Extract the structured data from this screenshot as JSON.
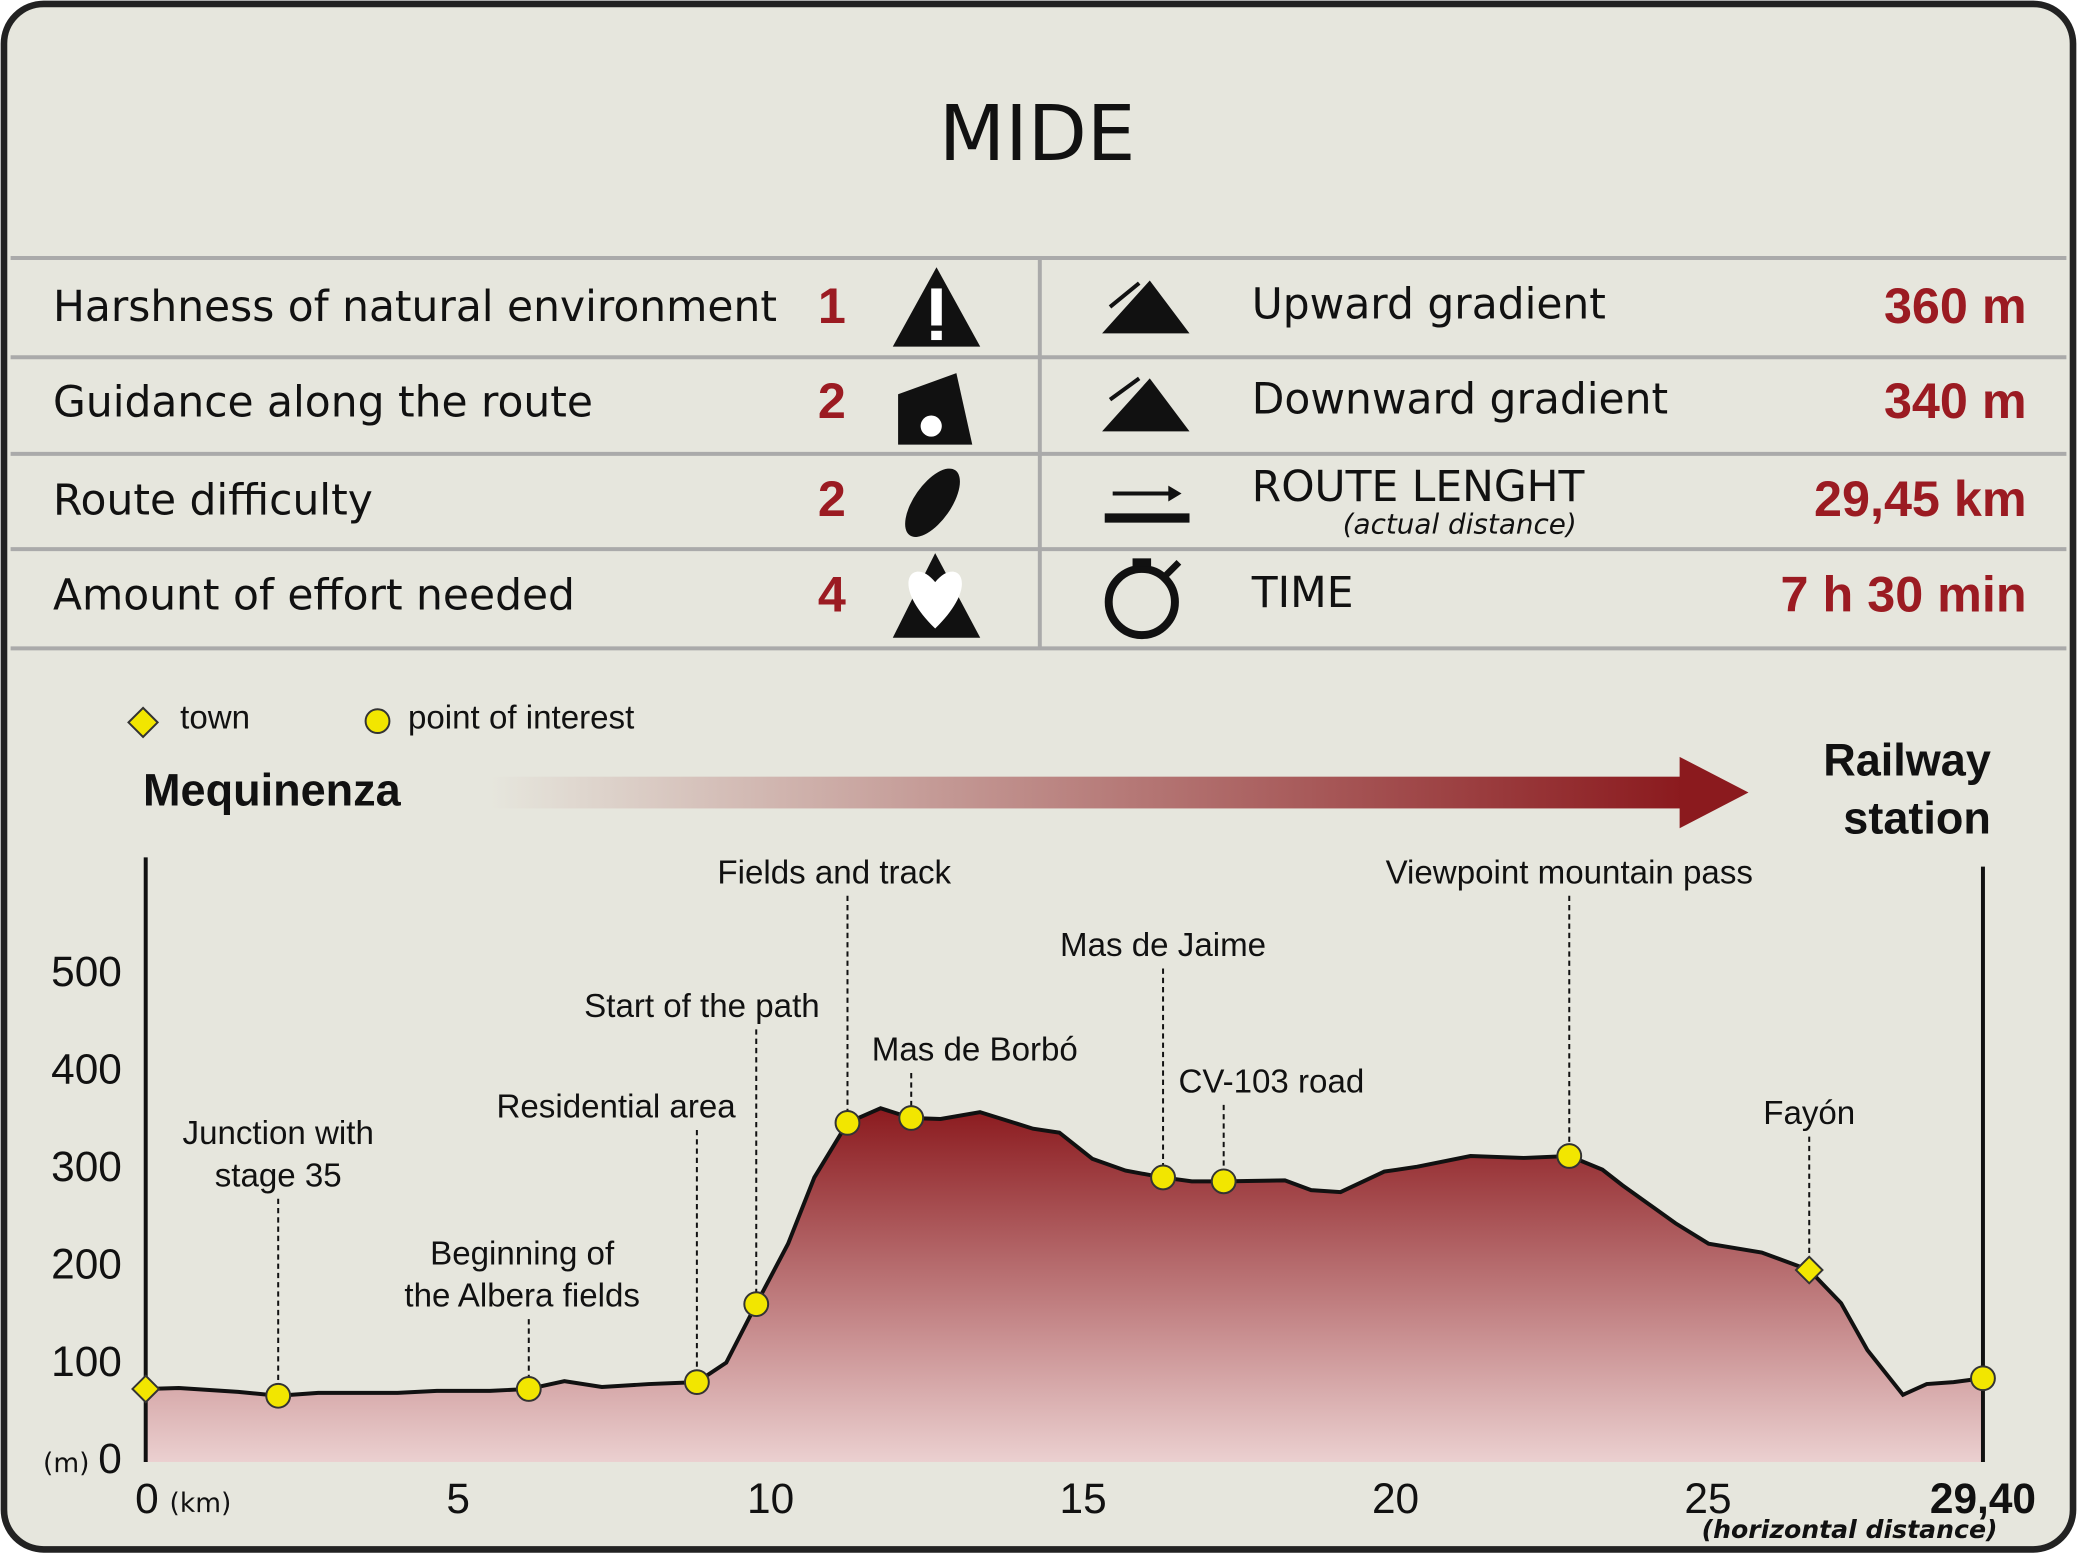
{
  "title": "MIDE",
  "mide": {
    "left": [
      {
        "label": "Harshness of natural environment",
        "value": 1
      },
      {
        "label": "Guidance along the route",
        "value": 2
      },
      {
        "label": "Route difficulty",
        "value": 2
      },
      {
        "label": "Amount of effort needed",
        "value": 4
      }
    ],
    "right": [
      {
        "label": "Upward gradient",
        "value": "360 m"
      },
      {
        "label": "Downward gradient",
        "value": "340 m"
      },
      {
        "label": "ROUTE LENGHT",
        "note": "(actual distance)",
        "value": "29,45 km"
      },
      {
        "label": "TIME",
        "value": "7 h 30 min"
      }
    ]
  },
  "legend": {
    "town": "town",
    "poi": "point of interest"
  },
  "chart_data": {
    "type": "area",
    "start_label": "Mequinenza",
    "end_label_lines": [
      "Railway",
      "station"
    ],
    "x_unit": "(km)",
    "y_unit": "(m)",
    "x_note": "(horizontal distance)",
    "xlim": [
      0,
      29.4
    ],
    "ylim": [
      0,
      600
    ],
    "xticks": [
      0,
      5,
      10,
      15,
      20,
      25,
      {
        "value": 29.4,
        "label": "29,40"
      }
    ],
    "yticks": [
      0,
      100,
      200,
      300,
      400,
      500
    ],
    "color": "#8b1a1e",
    "x": [
      0,
      0.53,
      1.48,
      2.12,
      2.76,
      4.03,
      4.66,
      5.51,
      6.13,
      6.7,
      7.3,
      8.05,
      8.82,
      9.29,
      9.77,
      10.28,
      10.7,
      11.23,
      11.76,
      12.25,
      12.72,
      13.35,
      14.2,
      14.62,
      15.15,
      15.68,
      16.28,
      16.74,
      17.25,
      18.23,
      18.65,
      19.12,
      19.82,
      20.35,
      21.2,
      22.05,
      22.78,
      23.31,
      23.63,
      24.48,
      25.01,
      25.86,
      26.62,
      27.13,
      27.55,
      28.12,
      28.5,
      28.93,
      29.4
    ],
    "values": [
      75,
      76,
      72,
      68,
      71,
      71,
      73,
      73,
      75,
      83,
      77,
      80,
      82,
      102,
      162,
      224,
      292,
      348,
      363,
      353,
      352,
      359,
      342,
      338,
      311,
      299,
      292,
      288,
      288,
      289,
      279,
      277,
      298,
      303,
      314,
      312,
      314,
      300,
      284,
      245,
      224,
      215,
      197,
      163,
      115,
      69,
      80,
      82,
      86
    ],
    "markers": [
      {
        "label": null,
        "kind": "town",
        "x": 0,
        "y": 75
      },
      {
        "label": [
          "Junction with",
          "stage 35"
        ],
        "kind": "poi",
        "x": 2.12,
        "y": 68
      },
      {
        "label": [
          "Beginning of",
          "the Albera fields"
        ],
        "kind": "poi",
        "x": 6.13,
        "y": 75
      },
      {
        "label": [
          "Residential area"
        ],
        "kind": "poi",
        "x": 8.82,
        "y": 82
      },
      {
        "label": [
          "Start of the path"
        ],
        "kind": "poi",
        "x": 9.77,
        "y": 162
      },
      {
        "label": [
          "Fields and track"
        ],
        "kind": "poi",
        "x": 11.23,
        "y": 348
      },
      {
        "label": [
          "Mas de Borbó"
        ],
        "kind": "poi",
        "x": 12.25,
        "y": 353
      },
      {
        "label": [
          "Mas de Jaime"
        ],
        "kind": "poi",
        "x": 16.28,
        "y": 292
      },
      {
        "label": [
          "CV-103 road"
        ],
        "kind": "poi",
        "x": 17.25,
        "y": 288
      },
      {
        "label": [
          "Viewpoint mountain pass"
        ],
        "kind": "poi",
        "x": 22.78,
        "y": 314
      },
      {
        "label": [
          "Fayón"
        ],
        "kind": "town",
        "x": 26.62,
        "y": 197
      },
      {
        "label": null,
        "kind": "poi",
        "x": 29.4,
        "y": 86
      }
    ]
  }
}
